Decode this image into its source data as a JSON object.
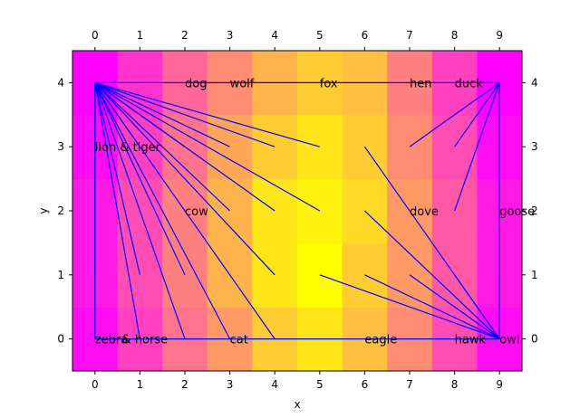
{
  "chart_data": {
    "type": "heatmap",
    "title": "",
    "xlabel": "x",
    "ylabel": "y",
    "xlim": [
      -0.5,
      9.5
    ],
    "ylim": [
      -0.5,
      4.5
    ],
    "x_ticks": [
      "0",
      "1",
      "2",
      "3",
      "4",
      "5",
      "6",
      "7",
      "8",
      "9"
    ],
    "y_ticks": [
      "0",
      "1",
      "2",
      "3",
      "4"
    ],
    "grid": false,
    "colormap": "spring",
    "heatmap": {
      "rows_y": [
        0,
        1,
        2,
        3,
        4
      ],
      "values": [
        [
          0.05,
          0.25,
          0.45,
          0.6,
          0.8,
          0.9,
          0.75,
          0.55,
          0.3,
          0.05
        ],
        [
          0.1,
          0.3,
          0.5,
          0.7,
          0.9,
          1.0,
          0.8,
          0.6,
          0.35,
          0.1
        ],
        [
          0.1,
          0.3,
          0.5,
          0.7,
          0.9,
          0.95,
          0.85,
          0.6,
          0.35,
          0.1
        ],
        [
          0.05,
          0.25,
          0.45,
          0.65,
          0.8,
          0.9,
          0.8,
          0.55,
          0.3,
          0.05
        ],
        [
          0.0,
          0.2,
          0.4,
          0.55,
          0.7,
          0.8,
          0.75,
          0.5,
          0.25,
          0.0
        ]
      ]
    },
    "nodes": [
      {
        "x": 0,
        "y": 4,
        "label": ""
      },
      {
        "x": 9,
        "y": 4,
        "label": ""
      },
      {
        "x": 0,
        "y": 0,
        "label": ""
      },
      {
        "x": 9,
        "y": 0,
        "label": ""
      },
      {
        "x": 2,
        "y": 4,
        "label": "dog"
      },
      {
        "x": 3,
        "y": 4,
        "label": "wolf"
      },
      {
        "x": 5,
        "y": 4,
        "label": "fox"
      },
      {
        "x": 7,
        "y": 4,
        "label": "hen"
      },
      {
        "x": 8,
        "y": 4,
        "label": "duck"
      },
      {
        "x": 0,
        "y": 3,
        "label": "lion & tiger"
      },
      {
        "x": 2,
        "y": 2,
        "label": "cow"
      },
      {
        "x": 7,
        "y": 2,
        "label": "dove"
      },
      {
        "x": 9,
        "y": 2,
        "label": "goose"
      },
      {
        "x": 0,
        "y": 0,
        "label": "zebra"
      },
      {
        "x": 0.6,
        "y": 0,
        "label": "& horse"
      },
      {
        "x": 3,
        "y": 0,
        "label": "cat"
      },
      {
        "x": 6,
        "y": 0,
        "label": "eagle"
      },
      {
        "x": 8,
        "y": 0,
        "label": "hawk"
      },
      {
        "x": 9,
        "y": 0,
        "label": "owl"
      }
    ],
    "edge_color": "#0000ff",
    "edges": [
      [
        [
          0,
          4
        ],
        [
          9,
          4
        ]
      ],
      [
        [
          0,
          4
        ],
        [
          0,
          0
        ]
      ],
      [
        [
          0,
          0
        ],
        [
          9,
          0
        ]
      ],
      [
        [
          9,
          4
        ],
        [
          9,
          0
        ]
      ],
      [
        [
          0,
          4
        ],
        [
          1,
          3
        ]
      ],
      [
        [
          0,
          4
        ],
        [
          2,
          3
        ]
      ],
      [
        [
          0,
          4
        ],
        [
          3,
          3
        ]
      ],
      [
        [
          0,
          4
        ],
        [
          4,
          3
        ]
      ],
      [
        [
          0,
          4
        ],
        [
          5,
          3
        ]
      ],
      [
        [
          0,
          4
        ],
        [
          3,
          2
        ]
      ],
      [
        [
          0,
          4
        ],
        [
          4,
          2
        ]
      ],
      [
        [
          0,
          4
        ],
        [
          5,
          2
        ]
      ],
      [
        [
          0,
          4
        ],
        [
          4,
          1
        ]
      ],
      [
        [
          0,
          4
        ],
        [
          2,
          1
        ]
      ],
      [
        [
          0,
          4
        ],
        [
          1,
          1
        ]
      ],
      [
        [
          0,
          4
        ],
        [
          0,
          1
        ]
      ],
      [
        [
          0,
          4
        ],
        [
          2,
          0
        ]
      ],
      [
        [
          0,
          4
        ],
        [
          3,
          0
        ]
      ],
      [
        [
          0,
          4
        ],
        [
          4,
          0
        ]
      ],
      [
        [
          0,
          4
        ],
        [
          1,
          0
        ]
      ],
      [
        [
          9,
          4
        ],
        [
          7,
          3
        ]
      ],
      [
        [
          9,
          4
        ],
        [
          8,
          3
        ]
      ],
      [
        [
          9,
          4
        ],
        [
          8,
          2
        ]
      ],
      [
        [
          9,
          4
        ],
        [
          9,
          2
        ]
      ],
      [
        [
          9,
          0
        ],
        [
          6,
          3
        ]
      ],
      [
        [
          9,
          0
        ],
        [
          6,
          2
        ]
      ],
      [
        [
          9,
          0
        ],
        [
          6,
          1
        ]
      ],
      [
        [
          9,
          0
        ],
        [
          5,
          1
        ]
      ],
      [
        [
          9,
          0
        ],
        [
          7,
          1
        ]
      ],
      [
        [
          9,
          0
        ],
        [
          9,
          1
        ]
      ],
      [
        [
          9,
          0
        ],
        [
          8,
          1
        ]
      ]
    ]
  }
}
